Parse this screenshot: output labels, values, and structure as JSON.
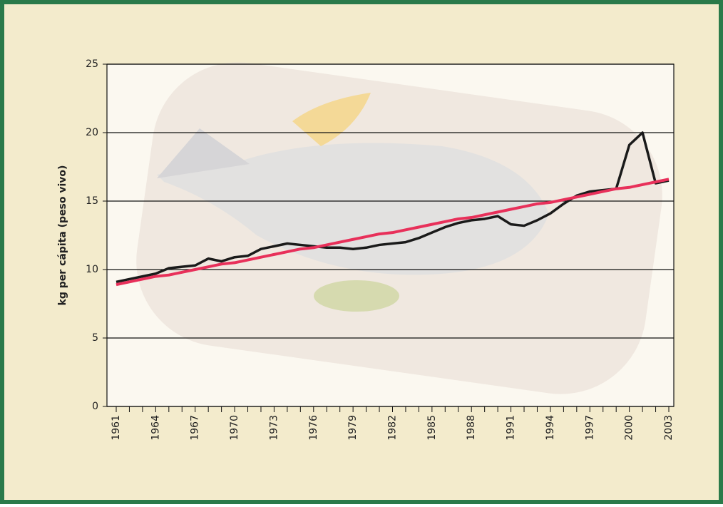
{
  "chart_data": {
    "type": "line",
    "y_label": "kg per cápita (peso vivo)",
    "categories": [
      "1961",
      null,
      null,
      "1964",
      null,
      null,
      "1967",
      null,
      null,
      "1970",
      null,
      null,
      "1973",
      null,
      null,
      "1976",
      null,
      null,
      "1979",
      null,
      null,
      "1982",
      null,
      null,
      "1985",
      null,
      null,
      "1988",
      null,
      null,
      "1991",
      null,
      null,
      "1994",
      null,
      null,
      "1997",
      null,
      null,
      "2000",
      null,
      null,
      "2003"
    ],
    "series": [
      {
        "color": "#1a1a1a",
        "values": [
          9.1,
          9.3,
          9.5,
          9.7,
          10.1,
          10.2,
          10.3,
          10.8,
          10.6,
          10.9,
          11.0,
          11.5,
          11.7,
          11.9,
          11.8,
          11.7,
          11.6,
          11.6,
          11.5,
          11.6,
          11.8,
          11.9,
          12.0,
          12.3,
          12.7,
          13.1,
          13.4,
          13.6,
          13.7,
          13.9,
          13.3,
          13.2,
          13.6,
          14.1,
          14.8,
          15.4,
          15.7,
          15.8,
          15.9,
          19.1,
          20.0,
          16.3,
          16.5
        ]
      },
      {
        "color": "#e8305a",
        "values": [
          8.9,
          9.1,
          9.3,
          9.5,
          9.6,
          9.8,
          10.0,
          10.2,
          10.4,
          10.5,
          10.7,
          10.9,
          11.1,
          11.3,
          11.5,
          11.6,
          11.8,
          12.0,
          12.2,
          12.4,
          12.6,
          12.7,
          12.9,
          13.1,
          13.3,
          13.5,
          13.7,
          13.8,
          14.0,
          14.2,
          14.4,
          14.6,
          14.8,
          14.9,
          15.1,
          15.3,
          15.5,
          15.7,
          15.9,
          16.0,
          16.2,
          16.4,
          16.6
        ]
      }
    ],
    "ylim": [
      0,
      25
    ],
    "yticks": [
      0,
      5,
      10,
      15,
      20,
      25
    ],
    "grid": true
  }
}
